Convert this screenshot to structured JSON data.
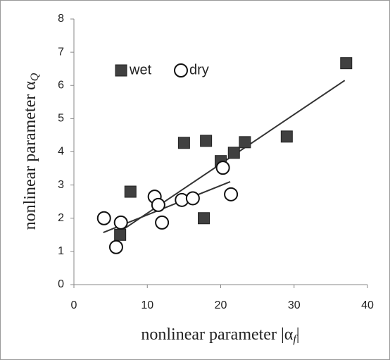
{
  "chart_data": {
    "type": "scatter",
    "x_label": {
      "main": "nonlinear parameter |α",
      "sub": "f",
      "tail": "|"
    },
    "y_label": {
      "main": "nonlinear parameter α",
      "sub": "Q"
    },
    "xlim": [
      0,
      40
    ],
    "xticks": [
      0,
      10,
      20,
      30,
      40
    ],
    "ylim": [
      0,
      8
    ],
    "yticks": [
      0,
      1,
      2,
      3,
      4,
      5,
      6,
      7,
      8
    ],
    "grid": false,
    "legend": "upper left",
    "series": [
      {
        "name": "wet",
        "marker": "square",
        "color": "#404040",
        "x": [
          6.3,
          7.7,
          15.0,
          18.0,
          17.7,
          20.0,
          21.8,
          23.3,
          29.0,
          37.1
        ],
        "y": [
          1.5,
          2.8,
          4.27,
          4.33,
          2.0,
          3.72,
          3.97,
          4.29,
          4.46,
          6.67
        ],
        "trendline": {
          "x": [
            6.3,
            36.9
          ],
          "y": [
            1.6,
            6.15
          ]
        }
      },
      {
        "name": "dry",
        "marker": "circle",
        "color": "#ffffff",
        "x": [
          4.1,
          6.4,
          5.75,
          11.0,
          11.5,
          12.0,
          14.7,
          16.2,
          20.3,
          21.4
        ],
        "y": [
          2.0,
          1.87,
          1.13,
          2.65,
          2.4,
          1.87,
          2.55,
          2.6,
          3.52,
          2.72
        ],
        "trendline": {
          "x": [
            4.0,
            21.3
          ],
          "y": [
            1.57,
            3.1
          ]
        }
      }
    ]
  }
}
